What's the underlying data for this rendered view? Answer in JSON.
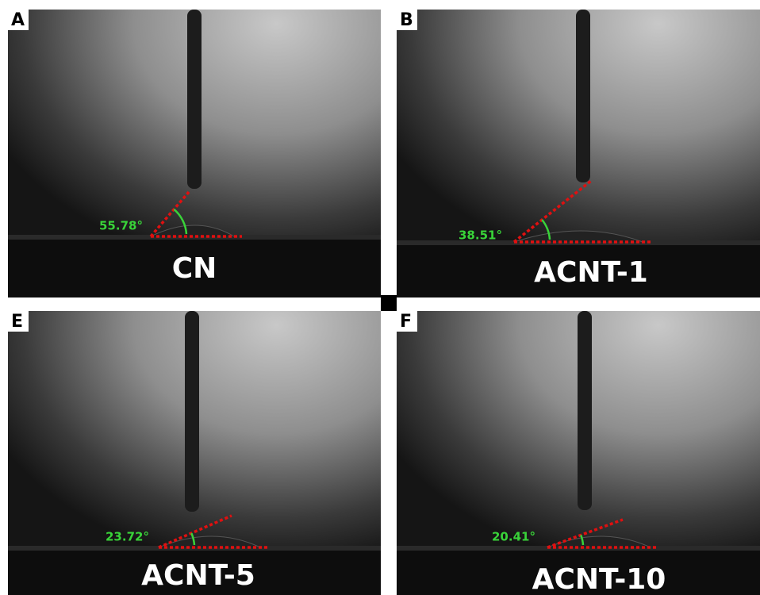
{
  "panels": [
    {
      "letter": "A",
      "sample": "CN",
      "angle": "55.78°"
    },
    {
      "letter": "B",
      "sample": "ACNT-1",
      "angle": "38.51°"
    },
    {
      "letter": "E",
      "sample": "ACNT-5",
      "angle": "23.72°"
    },
    {
      "letter": "F",
      "sample": "ACNT-10",
      "angle": "20.41°"
    }
  ]
}
